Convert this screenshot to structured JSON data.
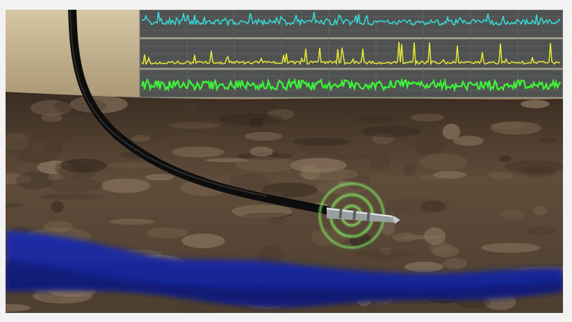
{
  "scene": {
    "description_hidden": "",
    "colors": {
      "sky_top": "#d6c7a4",
      "sky_bottom": "#a38f6c",
      "soil_dark": "#3a2c21",
      "soil_mid": "#6a5642",
      "soil_light": "#8e7960",
      "water": "#1f2ea8",
      "water_dark": "#101b6e",
      "cable": "#111111",
      "ring": "#7fe060",
      "trace1": "#38d8d8",
      "trace2": "#e4e436",
      "trace3": "#3ef03a",
      "panel_bg": "#5a5a5a",
      "panel_grid": "#7a7a7a"
    },
    "icons": [
      "cable",
      "sensor-probe",
      "signal-rings",
      "telemetry-traces"
    ]
  }
}
